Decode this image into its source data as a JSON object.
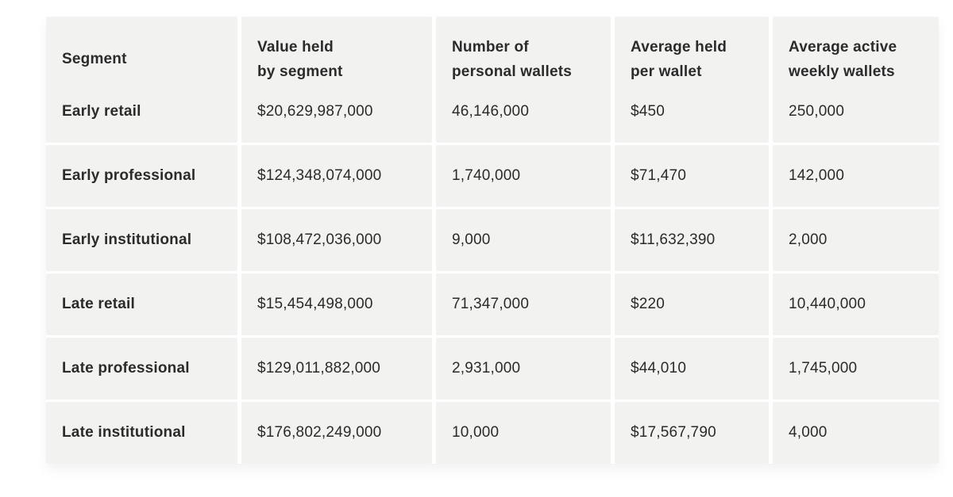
{
  "colors": {
    "page_background": "#ffffff",
    "cell_background": "#f2f2f0",
    "text": "#2b2b2b"
  },
  "table": {
    "columns": [
      {
        "line1": "Segment",
        "line2": ""
      },
      {
        "line1": "Value held",
        "line2": "by segment"
      },
      {
        "line1": "Number of",
        "line2": "personal wallets"
      },
      {
        "line1": "Average held",
        "line2": "per wallet"
      },
      {
        "line1": "Average active",
        "line2": "weekly wallets"
      }
    ],
    "rows": [
      {
        "segment": "Early retail",
        "value_held": "$20,629,987,000",
        "num_wallets": "46,146,000",
        "avg_held": "$450",
        "avg_active": "250,000"
      },
      {
        "segment": "Early professional",
        "value_held": "$124,348,074,000",
        "num_wallets": "1,740,000",
        "avg_held": "$71,470",
        "avg_active": "142,000"
      },
      {
        "segment": "Early institutional",
        "value_held": "$108,472,036,000",
        "num_wallets": "9,000",
        "avg_held": "$11,632,390",
        "avg_active": "2,000"
      },
      {
        "segment": "Late retail",
        "value_held": "$15,454,498,000",
        "num_wallets": "71,347,000",
        "avg_held": "$220",
        "avg_active": "10,440,000"
      },
      {
        "segment": "Late professional",
        "value_held": "$129,011,882,000",
        "num_wallets": "2,931,000",
        "avg_held": "$44,010",
        "avg_active": "1,745,000"
      },
      {
        "segment": "Late institutional",
        "value_held": "$176,802,249,000",
        "num_wallets": "10,000",
        "avg_held": "$17,567,790",
        "avg_active": "4,000"
      }
    ]
  }
}
